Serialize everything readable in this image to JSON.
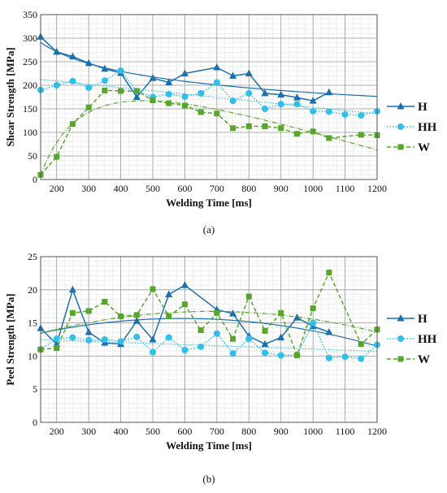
{
  "colors": {
    "H": "#1a6fae",
    "HH": "#2fbfe8",
    "W": "#57a52a",
    "grid_minor": "#bdbdbd",
    "grid_major": "#9a9a9a"
  },
  "chart_data": [
    {
      "type": "line",
      "panel_label": "(a)",
      "xlabel": "Welding Time [ms]",
      "ylabel": "Shear Strength [MPa]",
      "xlim": [
        150,
        1200
      ],
      "ylim": [
        0,
        350
      ],
      "xticks": [
        200,
        300,
        400,
        500,
        600,
        700,
        800,
        900,
        1000,
        1100,
        1200
      ],
      "yticks": [
        0,
        50,
        100,
        150,
        200,
        250,
        300,
        350
      ],
      "grid": true,
      "legend_position": "right",
      "series": [
        {
          "name": "H",
          "marker": "triangle",
          "dash": "solid",
          "x": [
            150,
            200,
            250,
            300,
            350,
            400,
            450,
            500,
            550,
            600,
            700,
            750,
            800,
            850,
            900,
            950,
            1000,
            1050
          ],
          "y": [
            303,
            271,
            261,
            247,
            235,
            226,
            175,
            215,
            206,
            225,
            238,
            220,
            225,
            183,
            180,
            174,
            167,
            185
          ],
          "trend": "power"
        },
        {
          "name": "HH",
          "marker": "circle",
          "dash": "dotted",
          "x": [
            150,
            200,
            250,
            300,
            350,
            400,
            450,
            500,
            550,
            600,
            650,
            700,
            750,
            800,
            850,
            900,
            950,
            1000,
            1050,
            1100,
            1150,
            1200
          ],
          "y": [
            190,
            200,
            209,
            195,
            210,
            231,
            187,
            175,
            181,
            176,
            183,
            206,
            167,
            183,
            150,
            160,
            160,
            145,
            144,
            138,
            136,
            145
          ],
          "trend": "linear"
        },
        {
          "name": "W",
          "marker": "square",
          "dash": "dashed",
          "x": [
            150,
            200,
            250,
            300,
            350,
            400,
            450,
            500,
            550,
            600,
            650,
            700,
            750,
            800,
            850,
            900,
            950,
            1000,
            1050,
            1150,
            1200
          ],
          "y": [
            10,
            48,
            118,
            153,
            189,
            188,
            188,
            168,
            162,
            157,
            143,
            140,
            109,
            113,
            113,
            109,
            97,
            102,
            88,
            95,
            94
          ],
          "trend": "log-curve"
        }
      ]
    },
    {
      "type": "line",
      "panel_label": "(b)",
      "xlabel": "Welding Time [ms]",
      "ylabel": "Peel Strength [MPa]",
      "xlim": [
        150,
        1200
      ],
      "ylim": [
        0,
        25
      ],
      "xticks": [
        200,
        300,
        400,
        500,
        600,
        700,
        800,
        900,
        1000,
        1100,
        1200
      ],
      "yticks": [
        0,
        5,
        10,
        15,
        20,
        25
      ],
      "grid": true,
      "legend_position": "right",
      "series": [
        {
          "name": "H",
          "marker": "triangle",
          "dash": "solid",
          "x": [
            150,
            200,
            250,
            300,
            350,
            400,
            450,
            500,
            550,
            600,
            700,
            750,
            800,
            850,
            900,
            950,
            1000,
            1050
          ],
          "y": [
            14.2,
            11.8,
            20.0,
            13.6,
            12.0,
            11.8,
            15.3,
            12.5,
            19.3,
            20.7,
            17.0,
            16.4,
            13.0,
            11.8,
            12.8,
            15.8,
            14.5,
            13.6
          ],
          "trend": "quadratic"
        },
        {
          "name": "HH",
          "marker": "circle",
          "dash": "dotted",
          "x": [
            150,
            200,
            250,
            300,
            350,
            400,
            450,
            500,
            550,
            600,
            650,
            700,
            750,
            800,
            850,
            900,
            950,
            1000,
            1050,
            1100,
            1150,
            1200
          ],
          "y": [
            11.0,
            12.6,
            12.8,
            12.4,
            12.5,
            12.2,
            12.9,
            10.6,
            12.8,
            10.9,
            11.4,
            13.4,
            10.4,
            12.6,
            10.5,
            10.1,
            10.2,
            15.0,
            9.7,
            9.9,
            9.6,
            11.7
          ],
          "trend": "linear"
        },
        {
          "name": "W",
          "marker": "square",
          "dash": "dashed",
          "x": [
            150,
            200,
            250,
            300,
            350,
            400,
            450,
            500,
            550,
            600,
            650,
            700,
            750,
            800,
            850,
            900,
            950,
            1000,
            1050,
            1150,
            1200
          ],
          "y": [
            11.0,
            11.2,
            16.5,
            16.8,
            18.2,
            16.0,
            16.2,
            20.1,
            16.0,
            17.8,
            13.9,
            16.5,
            12.6,
            19.0,
            13.8,
            16.5,
            10.1,
            17.2,
            22.6,
            11.8,
            14.0
          ],
          "trend": "quadratic"
        }
      ]
    }
  ]
}
